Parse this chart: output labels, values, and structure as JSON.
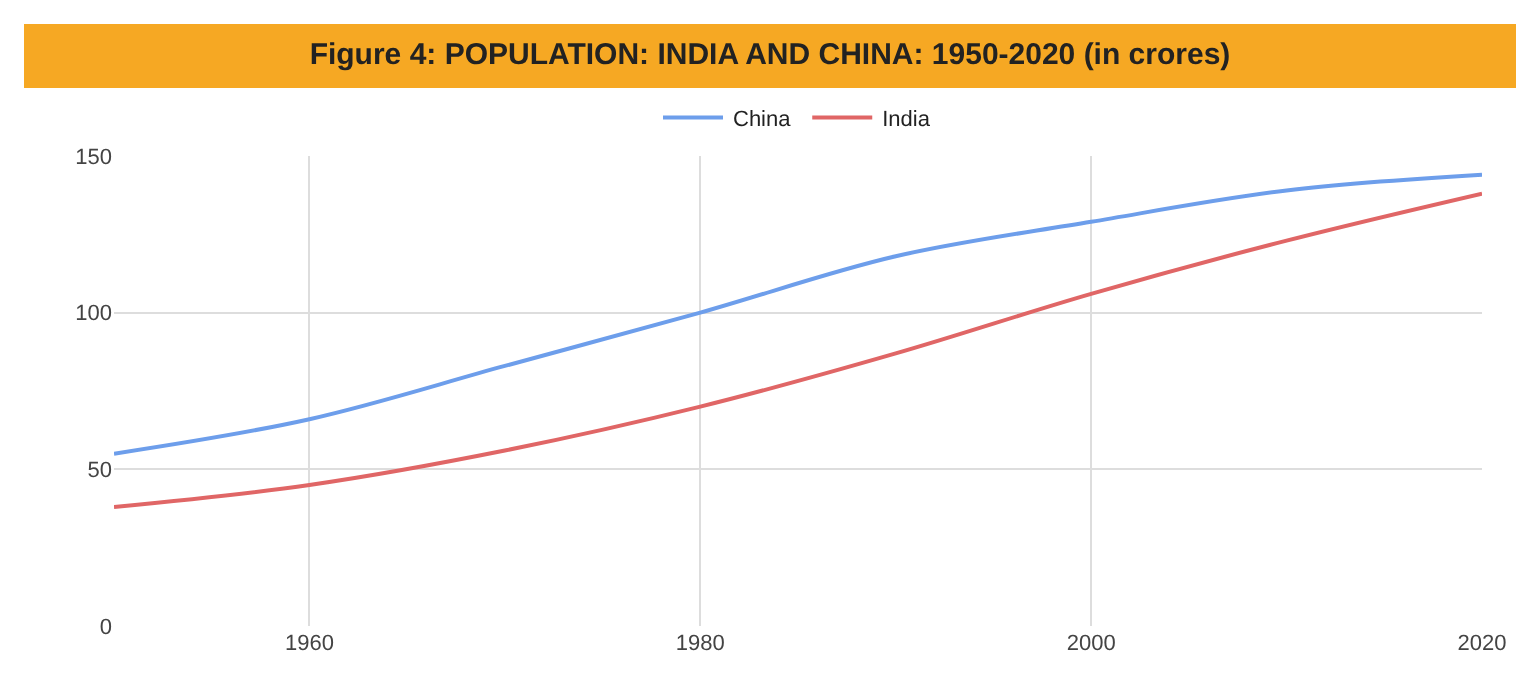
{
  "chart_data": {
    "type": "line",
    "title": "Figure 4: POPULATION: INDIA AND CHINA: 1950-2020 (in crores)",
    "x": [
      1950,
      1960,
      1970,
      1980,
      1990,
      2000,
      2010,
      2020
    ],
    "series": [
      {
        "name": "China",
        "color": "#6d9eeb",
        "values": [
          55,
          66,
          83,
          100,
          118,
          129,
          139,
          144
        ]
      },
      {
        "name": "India",
        "color": "#e06666",
        "values": [
          38,
          45,
          56,
          70,
          87,
          106,
          123,
          138
        ]
      }
    ],
    "xlim": [
      1950,
      2020
    ],
    "xticks": [
      1960,
      1980,
      2000,
      2020
    ],
    "ylim": [
      0,
      150
    ],
    "yticks": [
      0,
      50,
      100,
      150
    ],
    "grid": true,
    "legend": "top",
    "marker": "none",
    "line_style": "solid"
  }
}
